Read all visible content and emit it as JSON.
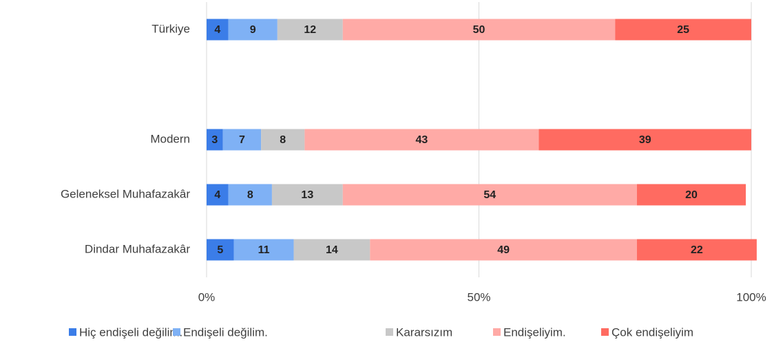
{
  "chart_data": {
    "type": "bar",
    "orientation": "horizontal",
    "stacked": true,
    "categories": [
      "Türkiye",
      null,
      "Modern",
      "Geleneksel Muhafazakâr",
      "Dindar Muhafazakâr"
    ],
    "series": [
      {
        "name": "Hiç endişeli değilim.",
        "color": "#3b7de8",
        "values": [
          4,
          null,
          3,
          4,
          5
        ]
      },
      {
        "name": "Endişeli değilim.",
        "color": "#7fb1f5",
        "values": [
          9,
          null,
          7,
          8,
          11
        ]
      },
      {
        "name": "Kararsızım",
        "color": "#c8c8c8",
        "values": [
          12,
          null,
          8,
          13,
          14
        ]
      },
      {
        "name": "Endişeliyim.",
        "color": "#ffaaa6",
        "values": [
          50,
          null,
          43,
          54,
          49
        ]
      },
      {
        "name": "Çok endişeliyim",
        "color": "#ff6b61",
        "values": [
          25,
          null,
          39,
          20,
          22
        ]
      }
    ],
    "xlim": [
      0,
      100
    ],
    "xticks": [
      {
        "value": 0,
        "label": "0%"
      },
      {
        "value": 50,
        "label": "50%"
      },
      {
        "value": 100,
        "label": "100%"
      }
    ],
    "grid": true,
    "legend": "bottom"
  }
}
